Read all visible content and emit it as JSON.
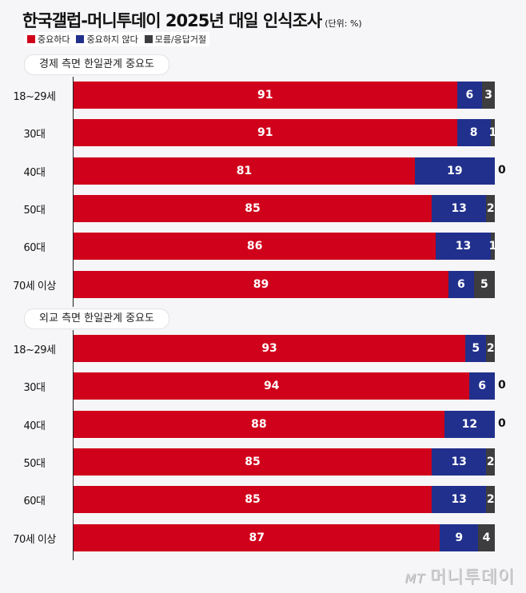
{
  "chart_data": {
    "type": "bar",
    "orientation": "horizontal",
    "stacked": true,
    "title": "한국갤럽-머니투데이 2025년 대일 인식조사",
    "unit": "(단위: %)",
    "legend": [
      {
        "name": "중요하다",
        "color": "#d0021b"
      },
      {
        "name": "중요하지 않다",
        "color": "#21308c"
      },
      {
        "name": "모름/응답거절",
        "color": "#3d3d40"
      }
    ],
    "xlim": [
      0,
      100
    ],
    "panels": [
      {
        "title": "경제 측면 한일관계 중요도",
        "categories": [
          "18~29세",
          "30대",
          "40대",
          "50대",
          "60대",
          "70세 이상"
        ],
        "series": [
          {
            "name": "중요하다",
            "values": [
              91,
              91,
              81,
              85,
              86,
              89
            ]
          },
          {
            "name": "중요하지 않다",
            "values": [
              6,
              8,
              19,
              13,
              13,
              6
            ]
          },
          {
            "name": "모름/응답거절",
            "values": [
              3,
              1,
              0,
              2,
              1,
              5
            ]
          }
        ]
      },
      {
        "title": "외교 측면 한일관계 중요도",
        "categories": [
          "18~29세",
          "30대",
          "40대",
          "50대",
          "60대",
          "70세 이상"
        ],
        "series": [
          {
            "name": "중요하다",
            "values": [
              93,
              94,
              88,
              85,
              85,
              87
            ]
          },
          {
            "name": "중요하지 않다",
            "values": [
              5,
              6,
              12,
              13,
              13,
              9
            ]
          },
          {
            "name": "모름/응답거절",
            "values": [
              2,
              0,
              0,
              2,
              2,
              4
            ]
          }
        ]
      }
    ]
  },
  "logo": {
    "mt": "MT",
    "name": "머니투데이"
  }
}
